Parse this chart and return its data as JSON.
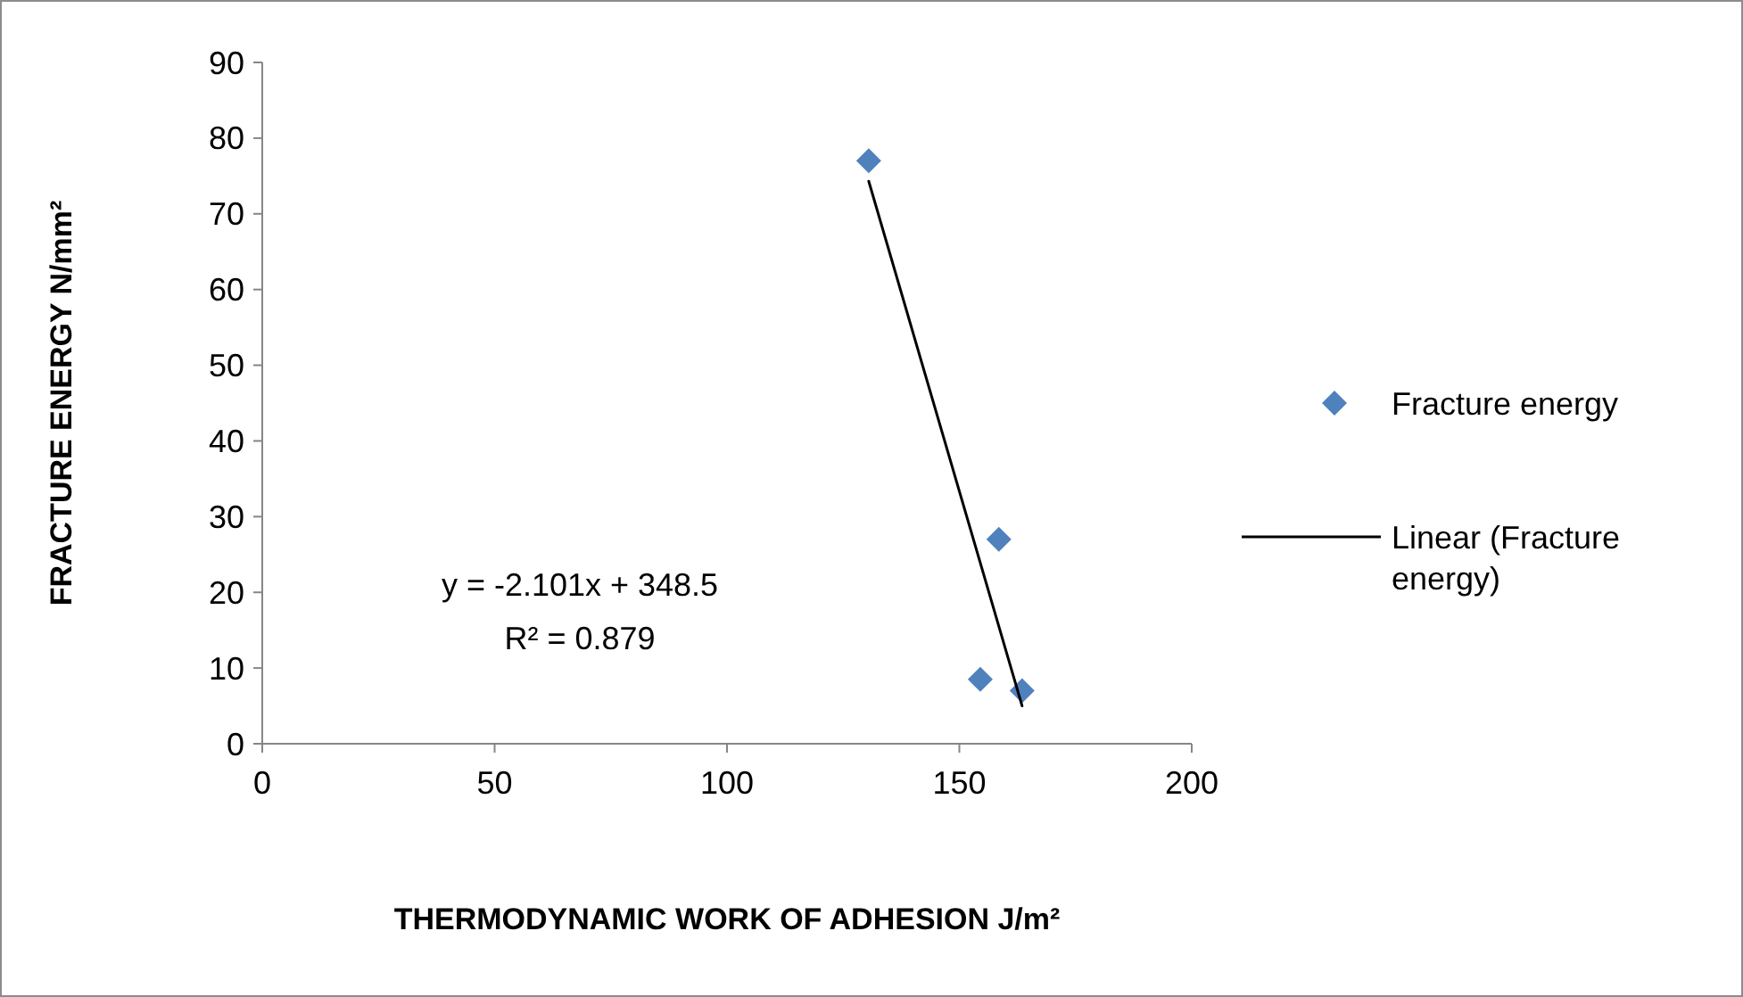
{
  "chart_data": {
    "type": "scatter",
    "xlabel": "THERMODYNAMIC WORK OF ADHESION J/m²",
    "ylabel": "FRACTURE ENERGY N/mm²",
    "xlim": [
      0,
      200
    ],
    "xticks": [
      0,
      50,
      100,
      150,
      200
    ],
    "ylim": [
      0,
      90
    ],
    "yticks": [
      0,
      10,
      20,
      30,
      40,
      50,
      60,
      70,
      80,
      90
    ],
    "grid": false,
    "legend": "right",
    "marker": "diamond",
    "annotations": [
      "y = -2.101x + 348.5",
      "R² = 0.879"
    ],
    "series": [
      {
        "name": "Fracture energy",
        "color": "#4f81bd",
        "x": [
          130.5,
          158.5,
          154.5,
          163.5
        ],
        "values": [
          77,
          27,
          8.5,
          7
        ]
      },
      {
        "name": "Linear (Fracture energy)",
        "type": "line",
        "color": "#000000",
        "marker": "none",
        "line_style": "solid",
        "x": [
          130.5,
          163.5
        ],
        "values": [
          74.3,
          5.0
        ]
      }
    ]
  }
}
